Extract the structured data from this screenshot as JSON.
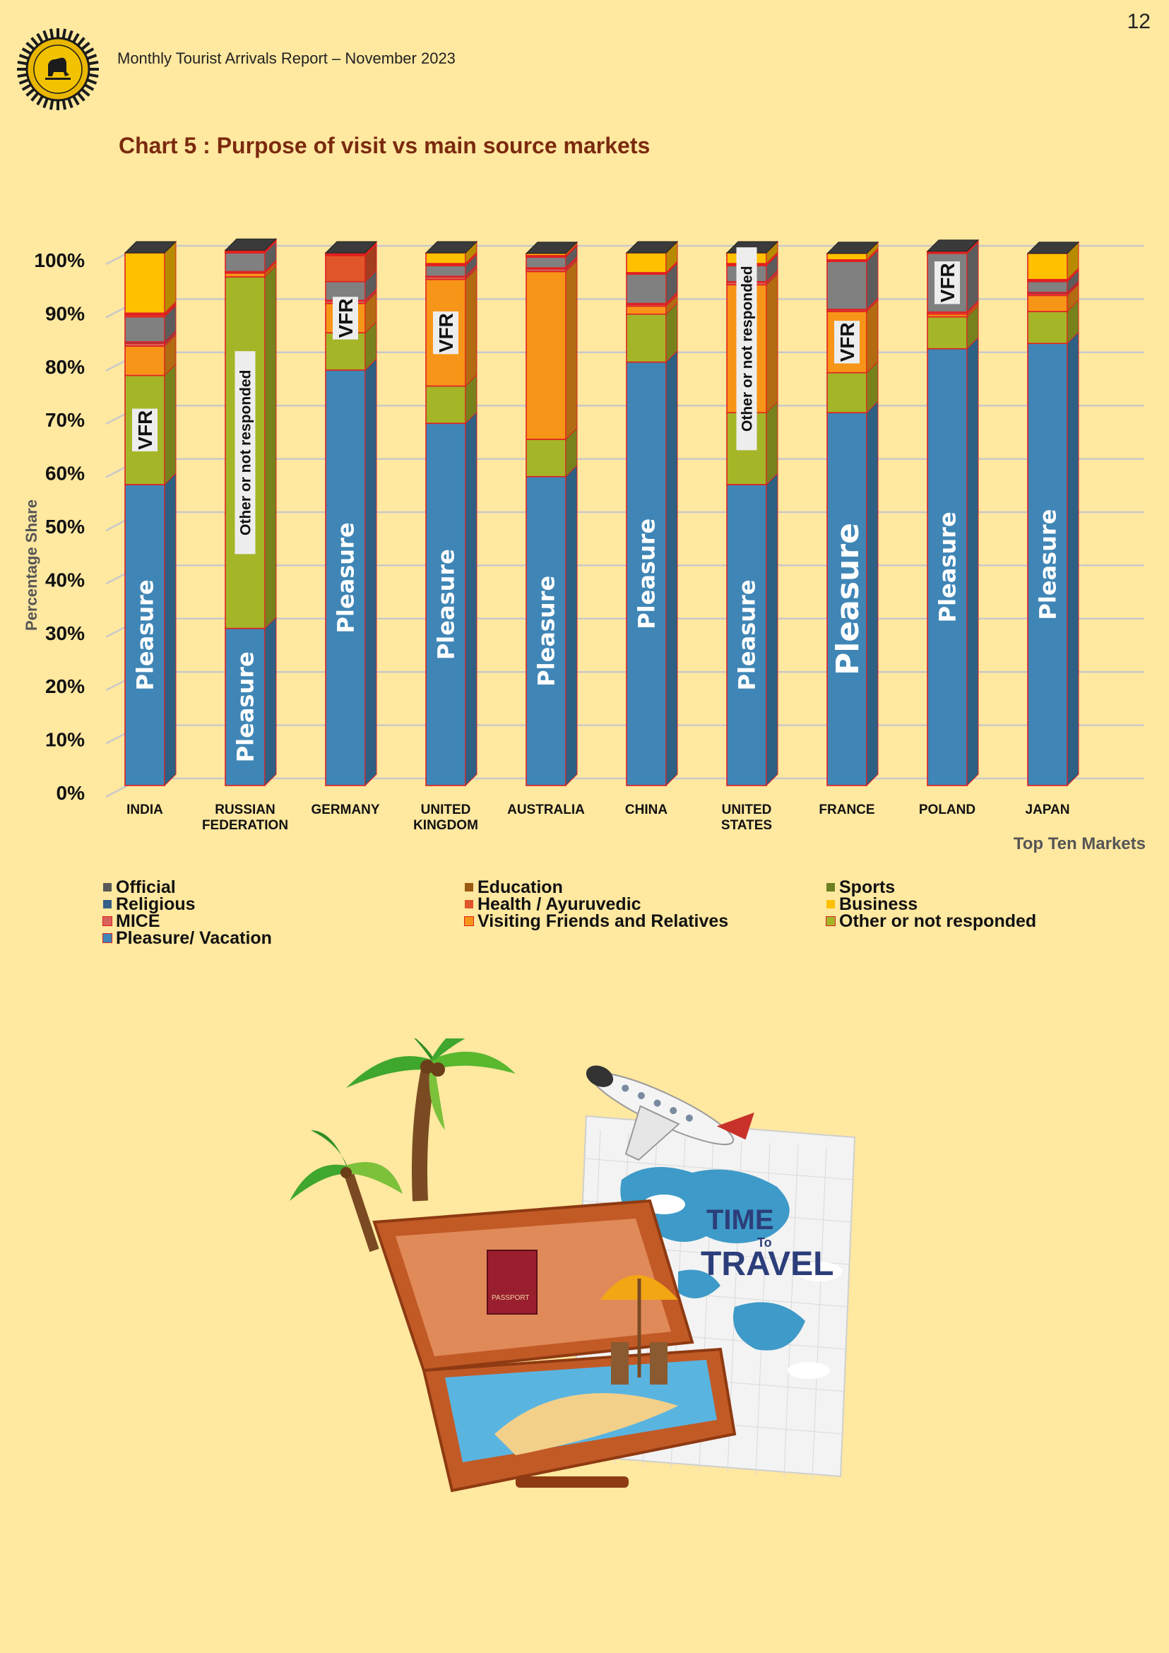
{
  "header": {
    "page_number": "12",
    "report_title": "Monthly Tourist Arrivals Report – November  2023"
  },
  "chart_data": {
    "type": "bar",
    "stacked": true,
    "title": "Chart 5 : Purpose of visit vs main source markets",
    "xlabel": "Top Ten Markets",
    "ylabel": "Percentage Share",
    "ylim": [
      0,
      100
    ],
    "yticks": [
      "0%",
      "10%",
      "20%",
      "30%",
      "40%",
      "50%",
      "60%",
      "70%",
      "80%",
      "90%",
      "100%"
    ],
    "categories": [
      [
        "INDIA"
      ],
      [
        "RUSSIAN",
        "FEDERATION"
      ],
      [
        "GERMANY"
      ],
      [
        "UNITED",
        "KINGDOM"
      ],
      [
        "AUSTRALIA"
      ],
      [
        "CHINA"
      ],
      [
        "UNITED",
        "STATES"
      ],
      [
        "FRANCE"
      ],
      [
        "POLAND"
      ],
      [
        "JAPAN"
      ]
    ],
    "series": [
      {
        "name": "Pleasure/ Vacation",
        "color": "#3F86B6",
        "values": [
          56.5,
          29.5,
          78,
          68,
          58,
          79.5,
          56.5,
          70,
          82,
          83
        ]
      },
      {
        "name": "Other or not responded",
        "color": "#A5B528",
        "values": [
          20.5,
          66,
          7,
          7,
          7,
          9,
          13.5,
          7.5,
          6,
          6
        ]
      },
      {
        "name": "Visiting Friends and Relatives",
        "color": "#F79518",
        "values": [
          5.5,
          0.7,
          5.5,
          20,
          31.5,
          1.5,
          24,
          11.5,
          0.5,
          3
        ]
      },
      {
        "name": "MICE",
        "color": "#D9625A",
        "values": [
          0.5,
          0.2,
          0.5,
          0.5,
          0.5,
          0.3,
          0.5,
          0.3,
          0.3,
          0.3
        ]
      },
      {
        "name": "Religious",
        "color": "#355E86",
        "values": [
          0.3,
          0.1,
          0.1,
          0.1,
          0.2,
          0.2,
          0.1,
          0.1,
          0.1,
          0.3
        ]
      },
      {
        "name": "Official",
        "color": "#808080",
        "values": [
          4.7,
          3.5,
          3.5,
          2,
          2,
          5.5,
          3,
          9,
          11,
          2
        ]
      },
      {
        "name": "Health / Ayurvedic",
        "color": "#E1552A",
        "values": [
          0.3,
          0.2,
          4.9,
          0.2,
          0.1,
          0.1,
          0.2,
          0.1,
          0.1,
          0.2
        ]
      },
      {
        "name": "Education",
        "color": "#9A5A10",
        "values": [
          0.2,
          0.1,
          0.2,
          0.1,
          0.1,
          0.1,
          0.1,
          0.1,
          0.1,
          0.1
        ]
      },
      {
        "name": "Sports",
        "color": "#6E7F22",
        "values": [
          0.2,
          0.1,
          0.1,
          0.1,
          0.1,
          0.1,
          0.1,
          0.1,
          0.1,
          0.1
        ]
      },
      {
        "name": "Business",
        "color": "#FFC000",
        "values": [
          11.3,
          0.1,
          0.2,
          2,
          0.4,
          3.7,
          2,
          1.2,
          0.1,
          4.9
        ]
      }
    ],
    "bar_labels": [
      {
        "bar": 0,
        "series": 0,
        "text": "Pleasure",
        "style": "inside"
      },
      {
        "bar": 0,
        "series": 1,
        "text": "VFR",
        "style": "box"
      },
      {
        "bar": 1,
        "series": 0,
        "text": "Pleasure",
        "style": "inside"
      },
      {
        "bar": 1,
        "series": 1,
        "text": "Other or not responded",
        "style": "box"
      },
      {
        "bar": 2,
        "series": 0,
        "text": "Pleasure",
        "style": "inside"
      },
      {
        "bar": 2,
        "series": 2,
        "text": "VFR",
        "style": "box"
      },
      {
        "bar": 3,
        "series": 0,
        "text": "Pleasure",
        "style": "inside"
      },
      {
        "bar": 3,
        "series": 2,
        "text": "VFR",
        "style": "box"
      },
      {
        "bar": 4,
        "series": 0,
        "text": "Pleasure",
        "style": "inside"
      },
      {
        "bar": 5,
        "series": 0,
        "text": "Pleasure",
        "style": "inside"
      },
      {
        "bar": 6,
        "series": 0,
        "text": "Pleasure",
        "style": "inside"
      },
      {
        "bar": 6,
        "series": 2,
        "text": "Other or not responded",
        "style": "box"
      },
      {
        "bar": 7,
        "series": 0,
        "text": "Pleasure",
        "style": "inside-large"
      },
      {
        "bar": 7,
        "series": 2,
        "text": "VFR",
        "style": "box"
      },
      {
        "bar": 8,
        "series": 0,
        "text": "Pleasure",
        "style": "inside"
      },
      {
        "bar": 8,
        "series": 5,
        "text": "VFR",
        "style": "box"
      },
      {
        "bar": 9,
        "series": 0,
        "text": "Pleasure",
        "style": "inside"
      }
    ],
    "legend": {
      "placement": "bottom",
      "entries": [
        {
          "label": "Official",
          "color": "#595959"
        },
        {
          "label": "Education",
          "color": "#9A5A10"
        },
        {
          "label": "Sports",
          "color": "#6E7F22"
        },
        {
          "label": "Religious",
          "color": "#355E86"
        },
        {
          "label": "Health / Ayuruvedic",
          "color": "#E1552A"
        },
        {
          "label": "Business",
          "color": "#FFC000"
        },
        {
          "label": "MICE",
          "color": "#D9625A"
        },
        {
          "label": "Visiting Friends and Relatives",
          "color": "#F79518"
        },
        {
          "label": "Other or not responded",
          "color": "#A5B528"
        },
        {
          "label": "Pleasure/ Vacation",
          "color": "#3F86B6"
        }
      ]
    },
    "grid": true
  },
  "illustration": {
    "map_text_1": "TIME",
    "map_text_2": "To",
    "map_text_3": "TRAVEL",
    "passport_text": "PASSPORT"
  }
}
